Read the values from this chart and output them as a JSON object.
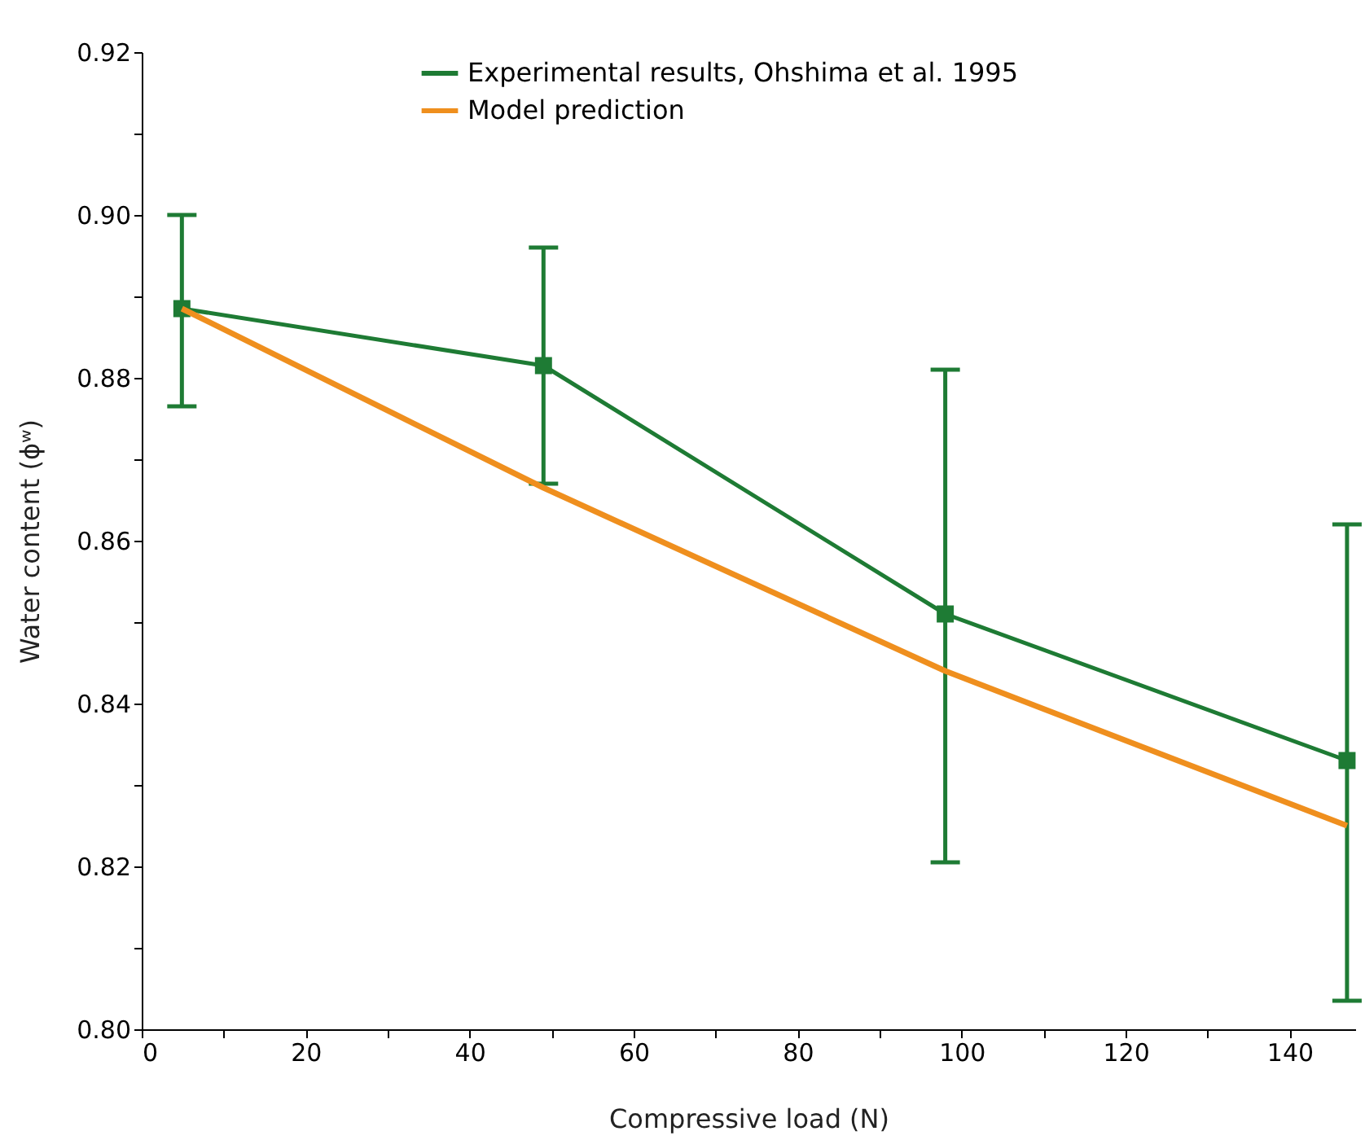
{
  "chart_data": {
    "type": "line",
    "xlabel": "Compressive load (N)",
    "ylabel": "Water content (ϕʷ)",
    "xlim": [
      0,
      148
    ],
    "ylim": [
      0.8,
      0.92
    ],
    "xticks": [
      0,
      {
        "value": 10,
        "label": null
      },
      20,
      {
        "value": 30,
        "label": null
      },
      40,
      {
        "value": 50,
        "label": null
      },
      60,
      {
        "value": 70,
        "label": null
      },
      80,
      {
        "value": 90,
        "label": null
      },
      100,
      {
        "value": 110,
        "label": null
      },
      120,
      {
        "value": 130,
        "label": null
      },
      140
    ],
    "yticks": [
      {
        "value": 0.8,
        "label": "0.80"
      },
      {
        "value": 0.81,
        "label": null
      },
      {
        "value": 0.82,
        "label": "0.82"
      },
      {
        "value": 0.83,
        "label": null
      },
      {
        "value": 0.84,
        "label": "0.84"
      },
      {
        "value": 0.85,
        "label": null
      },
      {
        "value": 0.86,
        "label": "0.86"
      },
      {
        "value": 0.87,
        "label": null
      },
      {
        "value": 0.88,
        "label": "0.88"
      },
      {
        "value": 0.89,
        "label": null
      },
      {
        "value": 0.9,
        "label": "0.90"
      },
      {
        "value": 0.91,
        "label": null
      },
      {
        "value": 0.92,
        "label": "0.92"
      }
    ],
    "grid": false,
    "legend": "top",
    "series": [
      {
        "name": "Experimental results, Ohshima et al. 1995",
        "color": "#1e7b34",
        "marker": "square",
        "x": [
          4.9,
          49,
          98,
          147
        ],
        "values": [
          0.8885,
          0.8815,
          0.851,
          0.833
        ],
        "errors": [
          [
            0.8765,
            0.9
          ],
          [
            0.867,
            0.896
          ],
          [
            0.8205,
            0.881
          ],
          [
            0.8035,
            0.862
          ]
        ]
      },
      {
        "name": "Model prediction",
        "color": "#ef8f1e",
        "marker": "none",
        "x": [
          4.9,
          49,
          98,
          147
        ],
        "values": [
          0.8885,
          0.8665,
          0.844,
          0.825
        ]
      }
    ]
  }
}
